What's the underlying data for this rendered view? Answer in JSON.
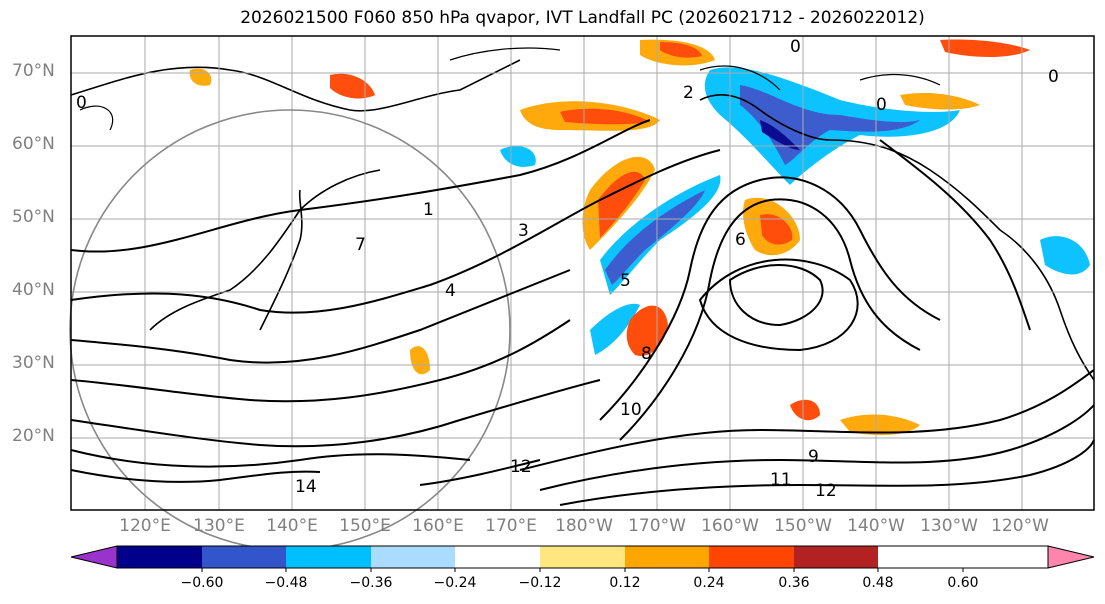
{
  "title": "2026021500 F060 850 hPa qvapor, IVT Landfall PC (2026021712 - 2026022012)",
  "map": {
    "lat_labels": [
      "70°N",
      "60°N",
      "50°N",
      "40°N",
      "30°N",
      "20°N"
    ],
    "lon_labels": [
      "120°E",
      "130°E",
      "140°E",
      "150°E",
      "160°E",
      "170°E",
      "180°W",
      "170°W",
      "160°W",
      "150°W",
      "140°W",
      "130°W",
      "120°W"
    ],
    "contour_labels": [
      "0",
      "0",
      "0",
      "0",
      "1",
      "2",
      "3",
      "4",
      "5",
      "6",
      "7",
      "8",
      "9",
      "10",
      "11",
      "12",
      "12",
      "14"
    ]
  },
  "colorbar": {
    "tick_labels": [
      "−0.60",
      "−0.48",
      "−0.36",
      "−0.24",
      "−0.12",
      "0.12",
      "0.24",
      "0.36",
      "0.48",
      "0.60"
    ],
    "colors": [
      "#9933cc",
      "#00008b",
      "#3355cc",
      "#00bfff",
      "#aadcff",
      "#ffffff",
      "#ffe680",
      "#ffa500",
      "#ff4500",
      "#b22222",
      "#ff85ad"
    ]
  }
}
